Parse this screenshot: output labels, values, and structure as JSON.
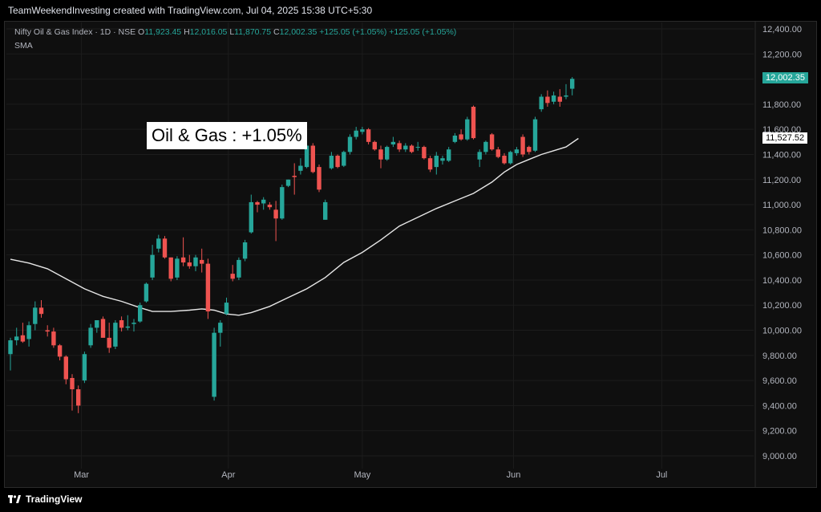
{
  "header": {
    "text": "TeamWeekendInvesting created with TradingView.com, Jul 04, 2025 15:38 UTC+5:30"
  },
  "legend": {
    "symbol": "Nifty Oil & Gas Index · 1D · NSE",
    "o_label": "O",
    "o_value": "11,923.45",
    "h_label": "H",
    "h_value": "12,016.05",
    "l_label": "L",
    "l_value": "11,870.75",
    "c_label": "C",
    "c_value": "12,002.35",
    "change": "+125.05 (+1.05%)",
    "change2": "+125.05 (+1.05%)",
    "indicator": "SMA"
  },
  "annotation": "Oil & Gas : +1.05%",
  "last_price_label": "12,002.35",
  "sma_price_label": "11,527.52",
  "footer": {
    "brand": "TradingView"
  },
  "colors": {
    "up": "#26a69a",
    "down": "#ef5350",
    "sma": "#e6e6e6",
    "background": "#0f0f0f",
    "grid": "#1c1c1c",
    "axis_text": "#b2b5be"
  },
  "chart_data": {
    "type": "candlestick",
    "y_ticks": [
      "12,400.00",
      "12,200.00",
      "12,000.00",
      "11,800.00",
      "11,600.00",
      "11,400.00",
      "11,200.00",
      "11,000.00",
      "10,800.00",
      "10,600.00",
      "10,400.00",
      "10,200.00",
      "10,000.00",
      "9,800.00",
      "9,600.00",
      "9,400.00",
      "9,200.00",
      "9,000.00"
    ],
    "y_tick_values": [
      12400,
      12200,
      12000,
      11800,
      11600,
      11400,
      11200,
      11000,
      10800,
      10600,
      10400,
      10200,
      10000,
      9800,
      9600,
      9400,
      9200,
      9000
    ],
    "ylim": [
      8960,
      12480
    ],
    "month_labels": [
      {
        "label": "Mar",
        "index": 11.5
      },
      {
        "label": "Apr",
        "index": 35.3
      },
      {
        "label": "May",
        "index": 57
      },
      {
        "label": "Jun",
        "index": 81.5
      },
      {
        "label": "Jul",
        "index": 105.5
      }
    ],
    "candles": [
      {
        "o": 9810,
        "h": 9940,
        "l": 9680,
        "c": 9920
      },
      {
        "o": 9920,
        "h": 10020,
        "l": 9880,
        "c": 9950
      },
      {
        "o": 9960,
        "h": 10060,
        "l": 9900,
        "c": 9910
      },
      {
        "o": 9930,
        "h": 10070,
        "l": 9870,
        "c": 10040
      },
      {
        "o": 10050,
        "h": 10230,
        "l": 10000,
        "c": 10180
      },
      {
        "o": 10180,
        "h": 10240,
        "l": 10100,
        "c": 10130
      },
      {
        "o": 10000,
        "h": 10040,
        "l": 9950,
        "c": 9990
      },
      {
        "o": 9990,
        "h": 10020,
        "l": 9860,
        "c": 9880
      },
      {
        "o": 9880,
        "h": 9890,
        "l": 9760,
        "c": 9790
      },
      {
        "o": 9790,
        "h": 9800,
        "l": 9570,
        "c": 9610
      },
      {
        "o": 9620,
        "h": 9650,
        "l": 9360,
        "c": 9530
      },
      {
        "o": 9530,
        "h": 9560,
        "l": 9340,
        "c": 9400
      },
      {
        "o": 9600,
        "h": 9830,
        "l": 9580,
        "c": 9810
      },
      {
        "o": 9880,
        "h": 10050,
        "l": 9860,
        "c": 10020
      },
      {
        "o": 10020,
        "h": 10080,
        "l": 9980,
        "c": 10080
      },
      {
        "o": 10090,
        "h": 10110,
        "l": 9960,
        "c": 9940
      },
      {
        "o": 9940,
        "h": 10060,
        "l": 9820,
        "c": 9860
      },
      {
        "o": 9870,
        "h": 10080,
        "l": 9850,
        "c": 10060
      },
      {
        "o": 10080,
        "h": 10110,
        "l": 9990,
        "c": 10020
      },
      {
        "o": 10020,
        "h": 10120,
        "l": 10000,
        "c": 10030
      },
      {
        "o": 10050,
        "h": 10090,
        "l": 9990,
        "c": 10060
      },
      {
        "o": 10070,
        "h": 10220,
        "l": 10060,
        "c": 10200
      },
      {
        "o": 10230,
        "h": 10380,
        "l": 10220,
        "c": 10370
      },
      {
        "o": 10420,
        "h": 10680,
        "l": 10400,
        "c": 10600
      },
      {
        "o": 10650,
        "h": 10760,
        "l": 10620,
        "c": 10730
      },
      {
        "o": 10730,
        "h": 10750,
        "l": 10570,
        "c": 10580
      },
      {
        "o": 10580,
        "h": 10580,
        "l": 10390,
        "c": 10410
      },
      {
        "o": 10420,
        "h": 10590,
        "l": 10400,
        "c": 10570
      },
      {
        "o": 10580,
        "h": 10740,
        "l": 10510,
        "c": 10540
      },
      {
        "o": 10540,
        "h": 10600,
        "l": 10490,
        "c": 10510
      },
      {
        "o": 10510,
        "h": 10600,
        "l": 10470,
        "c": 10580
      },
      {
        "o": 10560,
        "h": 10650,
        "l": 10460,
        "c": 10530
      },
      {
        "o": 10530,
        "h": 10570,
        "l": 10090,
        "c": 10150
      },
      {
        "o": 9470,
        "h": 10020,
        "l": 9440,
        "c": 9980
      },
      {
        "o": 9980,
        "h": 10080,
        "l": 9870,
        "c": 10060
      },
      {
        "o": 10130,
        "h": 10260,
        "l": 10120,
        "c": 10220
      },
      {
        "o": 10450,
        "h": 10520,
        "l": 10390,
        "c": 10410
      },
      {
        "o": 10420,
        "h": 10580,
        "l": 10400,
        "c": 10560
      },
      {
        "o": 10570,
        "h": 10720,
        "l": 10550,
        "c": 10700
      },
      {
        "o": 10780,
        "h": 11080,
        "l": 10770,
        "c": 11020
      },
      {
        "o": 11020,
        "h": 11030,
        "l": 10940,
        "c": 11000
      },
      {
        "o": 11010,
        "h": 11060,
        "l": 10960,
        "c": 11040
      },
      {
        "o": 11000,
        "h": 11020,
        "l": 10960,
        "c": 10980
      },
      {
        "o": 10960,
        "h": 11030,
        "l": 10710,
        "c": 10890
      },
      {
        "o": 10890,
        "h": 11160,
        "l": 10880,
        "c": 11140
      },
      {
        "o": 11150,
        "h": 11200,
        "l": 11140,
        "c": 11200
      },
      {
        "o": 11230,
        "h": 11330,
        "l": 11080,
        "c": 11220
      },
      {
        "o": 11270,
        "h": 11370,
        "l": 11240,
        "c": 11310
      },
      {
        "o": 11300,
        "h": 11480,
        "l": 11290,
        "c": 11470
      },
      {
        "o": 11470,
        "h": 11490,
        "l": 11250,
        "c": 11260
      },
      {
        "o": 11300,
        "h": 11320,
        "l": 11100,
        "c": 11120
      },
      {
        "o": 10880,
        "h": 11040,
        "l": 10880,
        "c": 11020
      },
      {
        "o": 11290,
        "h": 11420,
        "l": 11280,
        "c": 11390
      },
      {
        "o": 11390,
        "h": 11400,
        "l": 11290,
        "c": 11300
      },
      {
        "o": 11310,
        "h": 11430,
        "l": 11300,
        "c": 11420
      },
      {
        "o": 11420,
        "h": 11560,
        "l": 11400,
        "c": 11540
      },
      {
        "o": 11540,
        "h": 11620,
        "l": 11520,
        "c": 11590
      },
      {
        "o": 11580,
        "h": 11620,
        "l": 11560,
        "c": 11600
      },
      {
        "o": 11600,
        "h": 11610,
        "l": 11480,
        "c": 11500
      },
      {
        "o": 11500,
        "h": 11510,
        "l": 11430,
        "c": 11440
      },
      {
        "o": 11440,
        "h": 11470,
        "l": 11290,
        "c": 11360
      },
      {
        "o": 11360,
        "h": 11470,
        "l": 11350,
        "c": 11460
      },
      {
        "o": 11480,
        "h": 11540,
        "l": 11460,
        "c": 11500
      },
      {
        "o": 11490,
        "h": 11510,
        "l": 11420,
        "c": 11440
      },
      {
        "o": 11440,
        "h": 11490,
        "l": 11420,
        "c": 11470
      },
      {
        "o": 11470,
        "h": 11480,
        "l": 11410,
        "c": 11420
      },
      {
        "o": 11460,
        "h": 11500,
        "l": 11430,
        "c": 11460
      },
      {
        "o": 11460,
        "h": 11470,
        "l": 11360,
        "c": 11370
      },
      {
        "o": 11370,
        "h": 11390,
        "l": 11260,
        "c": 11280
      },
      {
        "o": 11300,
        "h": 11420,
        "l": 11240,
        "c": 11390
      },
      {
        "o": 11350,
        "h": 11390,
        "l": 11320,
        "c": 11370
      },
      {
        "o": 11350,
        "h": 11460,
        "l": 11340,
        "c": 11440
      },
      {
        "o": 11500,
        "h": 11570,
        "l": 11490,
        "c": 11550
      },
      {
        "o": 11560,
        "h": 11600,
        "l": 11510,
        "c": 11520
      },
      {
        "o": 11520,
        "h": 11700,
        "l": 11510,
        "c": 11680
      },
      {
        "o": 11780,
        "h": 11790,
        "l": 11520,
        "c": 11530
      },
      {
        "o": 11360,
        "h": 11440,
        "l": 11300,
        "c": 11420
      },
      {
        "o": 11420,
        "h": 11510,
        "l": 11400,
        "c": 11500
      },
      {
        "o": 11560,
        "h": 11570,
        "l": 11430,
        "c": 11440
      },
      {
        "o": 11440,
        "h": 11460,
        "l": 11370,
        "c": 11380
      },
      {
        "o": 11390,
        "h": 11410,
        "l": 11320,
        "c": 11330
      },
      {
        "o": 11330,
        "h": 11430,
        "l": 11320,
        "c": 11420
      },
      {
        "o": 11410,
        "h": 11460,
        "l": 11390,
        "c": 11440
      },
      {
        "o": 11540,
        "h": 11560,
        "l": 11380,
        "c": 11400
      },
      {
        "o": 11460,
        "h": 11470,
        "l": 11400,
        "c": 11420
      },
      {
        "o": 11430,
        "h": 11700,
        "l": 11420,
        "c": 11680
      },
      {
        "o": 11760,
        "h": 11880,
        "l": 11740,
        "c": 11860
      },
      {
        "o": 11860,
        "h": 11910,
        "l": 11780,
        "c": 11810
      },
      {
        "o": 11820,
        "h": 11900,
        "l": 11800,
        "c": 11870
      },
      {
        "o": 11860,
        "h": 11920,
        "l": 11780,
        "c": 11820
      },
      {
        "o": 11860,
        "h": 11960,
        "l": 11840,
        "c": 11870
      },
      {
        "o": 11923.45,
        "h": 12016.05,
        "l": 11870.75,
        "c": 12002.35
      }
    ],
    "sma": [
      {
        "i": 0,
        "v": 10565
      },
      {
        "i": 3,
        "v": 10535
      },
      {
        "i": 6,
        "v": 10490
      },
      {
        "i": 9,
        "v": 10410
      },
      {
        "i": 12,
        "v": 10330
      },
      {
        "i": 15,
        "v": 10270
      },
      {
        "i": 18,
        "v": 10230
      },
      {
        "i": 21,
        "v": 10180
      },
      {
        "i": 23,
        "v": 10150
      },
      {
        "i": 26,
        "v": 10150
      },
      {
        "i": 29,
        "v": 10160
      },
      {
        "i": 31,
        "v": 10170
      },
      {
        "i": 33,
        "v": 10160
      },
      {
        "i": 35,
        "v": 10130
      },
      {
        "i": 37,
        "v": 10120
      },
      {
        "i": 39,
        "v": 10140
      },
      {
        "i": 42,
        "v": 10190
      },
      {
        "i": 45,
        "v": 10260
      },
      {
        "i": 48,
        "v": 10330
      },
      {
        "i": 51,
        "v": 10420
      },
      {
        "i": 54,
        "v": 10540
      },
      {
        "i": 57,
        "v": 10620
      },
      {
        "i": 60,
        "v": 10720
      },
      {
        "i": 63,
        "v": 10830
      },
      {
        "i": 66,
        "v": 10900
      },
      {
        "i": 69,
        "v": 10970
      },
      {
        "i": 72,
        "v": 11030
      },
      {
        "i": 75,
        "v": 11090
      },
      {
        "i": 78,
        "v": 11180
      },
      {
        "i": 80,
        "v": 11260
      },
      {
        "i": 82,
        "v": 11320
      },
      {
        "i": 84,
        "v": 11360
      },
      {
        "i": 86,
        "v": 11400
      },
      {
        "i": 88,
        "v": 11430
      },
      {
        "i": 90,
        "v": 11460
      },
      {
        "i": 92,
        "v": 11527.52
      }
    ]
  }
}
